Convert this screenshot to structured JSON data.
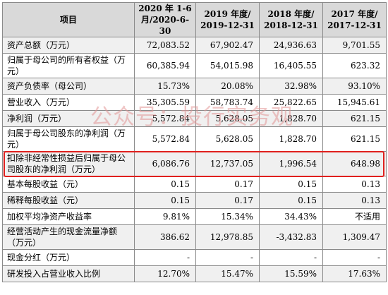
{
  "table": {
    "headers": [
      "项目",
      "2020 年 1-6 月/2020-6-30",
      "2019 年度/ 2019-12-31",
      "2018 年度/ 2018-12-31",
      "2017 年度/ 2017-12-31"
    ],
    "rows": [
      {
        "label": "资产总额（万元）",
        "values": [
          "72,083.52",
          "67,902.47",
          "24,936.63",
          "9,701.55"
        ]
      },
      {
        "label": "归属于母公司的所有者权益（万元）",
        "values": [
          "60,385.94",
          "54,015.98",
          "16,405.55",
          "623.32"
        ]
      },
      {
        "label": "资产负债率（母公司）",
        "values": [
          "15.73%",
          "20.08%",
          "32.98%",
          "93.10%"
        ]
      },
      {
        "label": "营业收入（万元）",
        "values": [
          "35,305.59",
          "58,783.74",
          "25,822.65",
          "15,945.61"
        ]
      },
      {
        "label": "净利润（万元）",
        "values": [
          "5,572.84",
          "5,628.05",
          "1,828.70",
          "621.15"
        ]
      },
      {
        "label": "归属于母公司股东的净利润（万元）",
        "values": [
          "5,572.84",
          "5,628.05",
          "1,828.70",
          "621.15"
        ]
      },
      {
        "label": "扣除非经常性损益后归属于母公司股东的净利润（万元）",
        "values": [
          "6,086.76",
          "12,737.05",
          "1,996.54",
          "648.98"
        ]
      },
      {
        "label": "基本每股收益（元）",
        "values": [
          "0.15",
          "0.17",
          "0.15",
          "0.13"
        ]
      },
      {
        "label": "稀释每股收益（元）",
        "values": [
          "0.15",
          "0.17",
          "0.15",
          "0.13"
        ]
      },
      {
        "label": "加权平均净资产收益率",
        "values": [
          "9.81%",
          "15.34%",
          "34.43%",
          "不适用"
        ]
      },
      {
        "label": "经营活动产生的现金流量净额（万元）",
        "values": [
          "386.62",
          "12,978.85",
          "-3,432.83",
          "1,309.47"
        ]
      },
      {
        "label": "现金分红（万元）",
        "values": [
          "-",
          "-",
          "-",
          "-"
        ]
      },
      {
        "label": "研发投入占营业收入比例",
        "values": [
          "12.70%",
          "15.47%",
          "15.59%",
          "17.63%"
        ]
      }
    ]
  },
  "watermark": "公众号：投行实务观",
  "colors": {
    "highlight_border": "#e0201e",
    "header_bg": "#d9d9d9",
    "row_alt_bg": "#f0f0f0"
  }
}
